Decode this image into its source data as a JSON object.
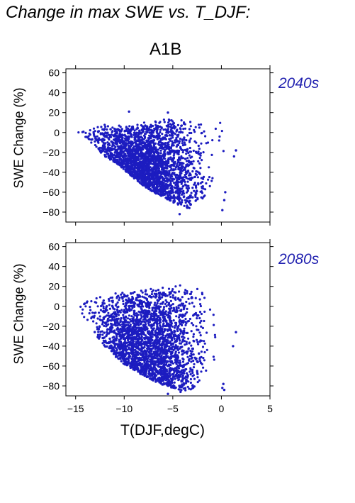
{
  "figure": {
    "title": "Change in max SWE vs. T_DJF:",
    "scenario": "A1B",
    "xlabel": "T(DJF,degC)",
    "ylabel": "SWE Change (%)",
    "colors": {
      "points": "#1c1cc0",
      "period_label": "#2222b0"
    }
  },
  "chart_data": [
    {
      "type": "scatter",
      "panel": "2040s",
      "xlabel": "T(DJF,degC)",
      "ylabel": "SWE Change (%)",
      "xlim": [
        -16,
        5
      ],
      "ylim": [
        -90,
        64
      ],
      "xticks": [
        -15,
        -10,
        -5,
        0,
        5
      ],
      "yticks": [
        60,
        40,
        20,
        0,
        -20,
        -40,
        -60,
        -80
      ],
      "series": [
        {
          "color": "#1c1cc0",
          "envelope_upper": [
            [
              -16,
              1
            ],
            [
              -15,
              3
            ],
            [
              -14,
              5
            ],
            [
              -13,
              7
            ],
            [
              -12,
              8
            ],
            [
              -11,
              9
            ],
            [
              -10,
              9
            ],
            [
              -9,
              9
            ],
            [
              -8,
              10
            ],
            [
              -7,
              11
            ],
            [
              -6,
              13
            ],
            [
              -5,
              15
            ],
            [
              -4,
              14
            ],
            [
              -3,
              13
            ],
            [
              -2,
              12
            ],
            [
              -1,
              11
            ],
            [
              0,
              10
            ],
            [
              1,
              9
            ],
            [
              1.2,
              4
            ]
          ],
          "envelope_lower": [
            [
              -16,
              1
            ],
            [
              -15,
              -1
            ],
            [
              -14,
              -6
            ],
            [
              -13,
              -15
            ],
            [
              -12,
              -24
            ],
            [
              -11,
              -30
            ],
            [
              -10,
              -38
            ],
            [
              -9,
              -46
            ],
            [
              -8,
              -54
            ],
            [
              -7,
              -60
            ],
            [
              -6,
              -65
            ],
            [
              -5,
              -70
            ],
            [
              -4,
              -75
            ],
            [
              -3,
              -77
            ],
            [
              -2,
              -68
            ],
            [
              -1,
              -55
            ],
            [
              0,
              -38
            ],
            [
              1,
              -20
            ],
            [
              1.2,
              -5
            ]
          ],
          "outliers": [
            [
              -9.5,
              21
            ],
            [
              -5.5,
              20
            ],
            [
              -4.3,
              -82
            ],
            [
              0.4,
              -60
            ],
            [
              0.3,
              -68
            ],
            [
              0.1,
              -78
            ],
            [
              1.5,
              -18
            ],
            [
              1.3,
              -24
            ]
          ]
        }
      ]
    },
    {
      "type": "scatter",
      "panel": "2080s",
      "xlabel": "T(DJF,degC)",
      "ylabel": "SWE Change (%)",
      "xlim": [
        -16,
        5
      ],
      "ylim": [
        -90,
        64
      ],
      "xticks": [
        -15,
        -10,
        -5,
        0,
        5
      ],
      "yticks": [
        60,
        40,
        20,
        0,
        -20,
        -40,
        -60,
        -80
      ],
      "series": [
        {
          "color": "#1c1cc0",
          "envelope_upper": [
            [
              -16,
              0
            ],
            [
              -15,
              3
            ],
            [
              -14,
              8
            ],
            [
              -13,
              12
            ],
            [
              -12,
              13
            ],
            [
              -11,
              14
            ],
            [
              -10,
              14
            ],
            [
              -9,
              15
            ],
            [
              -8,
              17
            ],
            [
              -7,
              19
            ],
            [
              -6,
              21
            ],
            [
              -5,
              22
            ],
            [
              -4,
              23
            ],
            [
              -3,
              22
            ],
            [
              -2,
              20
            ],
            [
              -1,
              17
            ],
            [
              0,
              14
            ],
            [
              1,
              12
            ],
            [
              1.3,
              5
            ]
          ],
          "envelope_lower": [
            [
              -16,
              0
            ],
            [
              -15,
              -3
            ],
            [
              -14,
              -12
            ],
            [
              -13,
              -28
            ],
            [
              -12,
              -40
            ],
            [
              -11,
              -50
            ],
            [
              -10,
              -58
            ],
            [
              -9,
              -64
            ],
            [
              -8,
              -70
            ],
            [
              -7,
              -75
            ],
            [
              -6,
              -79
            ],
            [
              -5,
              -82
            ],
            [
              -4,
              -85
            ],
            [
              -3,
              -84
            ],
            [
              -2,
              -72
            ],
            [
              -1,
              -60
            ],
            [
              0,
              -48
            ],
            [
              1,
              -30
            ],
            [
              1.3,
              -10
            ]
          ],
          "outliers": [
            [
              -5.5,
              -88
            ],
            [
              -4.2,
              -86
            ],
            [
              0.1,
              -82
            ],
            [
              0.3,
              -84
            ],
            [
              0.2,
              -78
            ],
            [
              1.5,
              -26
            ],
            [
              1.2,
              -40
            ]
          ]
        }
      ]
    }
  ],
  "panels": [
    {
      "label": "2040s"
    },
    {
      "label": "2080s"
    }
  ]
}
